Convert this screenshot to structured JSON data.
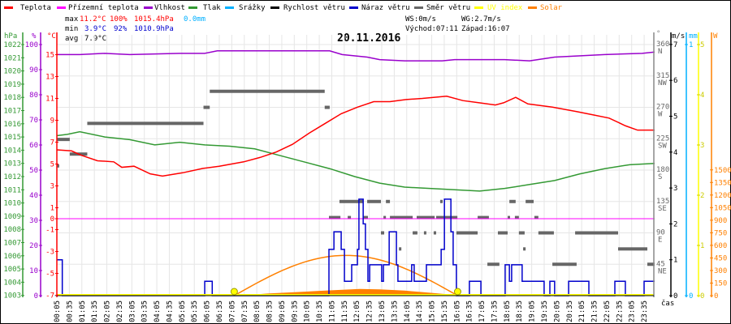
{
  "legend": [
    {
      "label": "Teplota",
      "color": "#ff0000"
    },
    {
      "label": "Přízemní teplota",
      "color": "#ff00ff"
    },
    {
      "label": "Vlhkost",
      "color": "#9900cc"
    },
    {
      "label": "Tlak",
      "color": "#339933"
    },
    {
      "label": "Srážky",
      "color": "#00b0ff"
    },
    {
      "label": "Rychlost větru",
      "color": "#000000"
    },
    {
      "label": "Náraz větru",
      "color": "#0000cc"
    },
    {
      "label": "Směr větru",
      "color": "#666666"
    },
    {
      "label": "UV index",
      "color": "#ffff00"
    },
    {
      "label": "Solar",
      "color": "#ff8000"
    }
  ],
  "stats": {
    "max_label": "max",
    "max_temp": "11.2°C",
    "max_hum": "100%",
    "max_press": "1015.4hPa",
    "max_rain": "0.0mm",
    "min_label": "min",
    "min_temp": "3.9°C",
    "min_hum": "92%",
    "min_press": "1010.9hPa",
    "avg_label": "avg",
    "avg_temp": "7.9°C",
    "ws": "WS:0m/s",
    "wg": "WG:2.7m/s",
    "sunrise": "Východ:07:11",
    "sunset": "Západ:16:07"
  },
  "chart_data": {
    "type": "line",
    "title": "20.11.2016",
    "xlabel": "čas",
    "x_range_hours": [
      0,
      24
    ],
    "x_ticks": [
      "00:05",
      "00:35",
      "01:05",
      "01:35",
      "02:05",
      "02:35",
      "03:05",
      "03:35",
      "04:05",
      "04:35",
      "05:05",
      "05:35",
      "06:05",
      "06:35",
      "07:05",
      "07:35",
      "08:05",
      "08:35",
      "09:05",
      "09:35",
      "10:05",
      "10:35",
      "11:05",
      "11:35",
      "12:05",
      "12:35",
      "13:05",
      "13:35",
      "14:05",
      "14:35",
      "15:05",
      "15:35",
      "16:05",
      "16:35",
      "17:05",
      "17:35",
      "18:05",
      "18:35",
      "19:05",
      "19:35",
      "20:05",
      "20:35",
      "21:05",
      "21:35",
      "22:05",
      "22:35",
      "23:05",
      "23:35"
    ],
    "axes": {
      "hPa": {
        "unit": "hPa",
        "range": [
          1003,
          1022
        ],
        "ticks": [
          "1022",
          "1021",
          "1020",
          "1019",
          "1018",
          "1017",
          "1016",
          "1015",
          "1014",
          "1013",
          "1012",
          "1011",
          "1010",
          "1009",
          "1008",
          "1007",
          "1006",
          "1005",
          "1004",
          "1003"
        ]
      },
      "pct": {
        "unit": "%",
        "range": [
          0,
          100
        ],
        "ticks": [
          "100",
          "90",
          "80",
          "70",
          "60",
          "50",
          "40",
          "30",
          "20",
          "10",
          "0"
        ]
      },
      "degC": {
        "unit": "°C",
        "range": [
          -7,
          15.7
        ],
        "ticks": [
          "15",
          "13",
          "11",
          "9",
          "7",
          "5",
          "3",
          "1",
          "0",
          "-1",
          "-3",
          "-5",
          "-7"
        ]
      },
      "dir": {
        "unit": "°",
        "range": [
          0,
          360
        ],
        "ticks": [
          {
            "v": "360",
            "d": "N"
          },
          {
            "v": "315",
            "d": "NW"
          },
          {
            "v": "270",
            "d": "W"
          },
          {
            "v": "225",
            "d": "SW"
          },
          {
            "v": "180",
            "d": "S"
          },
          {
            "v": "135",
            "d": "SE"
          },
          {
            "v": "90",
            "d": "E"
          },
          {
            "v": "45",
            "d": "NE"
          }
        ]
      },
      "ms": {
        "unit": "m/s",
        "range": [
          0,
          7
        ],
        "ticks": [
          "7",
          "6",
          "5",
          "4",
          "3",
          "2",
          "1",
          "0"
        ]
      },
      "mm": {
        "unit": "mm",
        "range": [
          0,
          1
        ],
        "ticks": [
          "1",
          "0"
        ]
      },
      "uv": {
        "range": [
          0,
          5
        ],
        "ticks": [
          "5",
          "4",
          "3",
          "2",
          "1",
          "0"
        ]
      },
      "W": {
        "unit": "W",
        "range": [
          0,
          3000
        ],
        "ticks": [
          "1500",
          "1350",
          "1200",
          "1050",
          "900",
          "750",
          "600",
          "450",
          "300",
          "150",
          "0"
        ]
      }
    },
    "series": [
      {
        "name": "Teplota",
        "axis": "degC",
        "color": "#ff0000",
        "points": [
          [
            0.08,
            6.3
          ],
          [
            0.67,
            6.2
          ],
          [
            1.06,
            5.8
          ],
          [
            1.71,
            5.3
          ],
          [
            2.36,
            5.2
          ],
          [
            2.68,
            4.7
          ],
          [
            3.17,
            4.8
          ],
          [
            3.82,
            4.1
          ],
          [
            4.31,
            3.9
          ],
          [
            5.12,
            4.2
          ],
          [
            5.93,
            4.6
          ],
          [
            6.58,
            4.8
          ],
          [
            7.56,
            5.2
          ],
          [
            8.21,
            5.6
          ],
          [
            8.86,
            6.1
          ],
          [
            9.51,
            6.8
          ],
          [
            10.16,
            7.8
          ],
          [
            10.81,
            8.7
          ],
          [
            11.46,
            9.6
          ],
          [
            12.11,
            10.2
          ],
          [
            12.76,
            10.7
          ],
          [
            13.41,
            10.7
          ],
          [
            14.06,
            10.9
          ],
          [
            14.71,
            11.0
          ],
          [
            15.68,
            11.2
          ],
          [
            16.33,
            10.8
          ],
          [
            16.98,
            10.6
          ],
          [
            17.63,
            10.4
          ],
          [
            17.96,
            10.6
          ],
          [
            18.44,
            11.1
          ],
          [
            18.93,
            10.5
          ],
          [
            19.91,
            10.2
          ],
          [
            20.88,
            9.8
          ],
          [
            21.53,
            9.5
          ],
          [
            22.18,
            9.2
          ],
          [
            22.83,
            8.5
          ],
          [
            23.32,
            8.1
          ],
          [
            24,
            8.1
          ]
        ]
      },
      {
        "name": "Přízemní teplota",
        "axis": "degC",
        "color": "#ff00ff",
        "points": [
          [
            0,
            0
          ],
          [
            24,
            0
          ]
        ]
      },
      {
        "name": "Vlhkost",
        "axis": "pct",
        "color": "#9900cc",
        "points": [
          [
            0.08,
            96
          ],
          [
            1,
            96
          ],
          [
            2,
            96.5
          ],
          [
            3,
            96
          ],
          [
            5,
            96.5
          ],
          [
            6,
            96.5
          ],
          [
            6.5,
            97.5
          ],
          [
            11,
            97.5
          ],
          [
            11.5,
            96
          ],
          [
            12.5,
            95
          ],
          [
            13,
            94
          ],
          [
            14,
            93.5
          ],
          [
            15.5,
            93.5
          ],
          [
            16,
            94
          ],
          [
            18,
            94
          ],
          [
            19,
            93.5
          ],
          [
            20,
            95
          ],
          [
            22,
            96
          ],
          [
            23.5,
            96.5
          ],
          [
            24,
            97
          ]
        ]
      },
      {
        "name": "Tlak",
        "axis": "hPa",
        "color": "#339933",
        "points": [
          [
            0.08,
            1015.1
          ],
          [
            0.5,
            1015.2
          ],
          [
            1,
            1015.4
          ],
          [
            2,
            1015.0
          ],
          [
            3,
            1014.8
          ],
          [
            4,
            1014.4
          ],
          [
            5,
            1014.6
          ],
          [
            6,
            1014.4
          ],
          [
            7,
            1014.3
          ],
          [
            8,
            1014.1
          ],
          [
            9,
            1013.6
          ],
          [
            10,
            1013.1
          ],
          [
            11,
            1012.6
          ],
          [
            12,
            1012.0
          ],
          [
            13,
            1011.5
          ],
          [
            14,
            1011.2
          ],
          [
            15,
            1011.1
          ],
          [
            16,
            1011.0
          ],
          [
            17,
            1010.9
          ],
          [
            18,
            1011.1
          ],
          [
            19,
            1011.4
          ],
          [
            20,
            1011.7
          ],
          [
            21,
            1012.2
          ],
          [
            22,
            1012.6
          ],
          [
            23,
            1012.9
          ],
          [
            24,
            1013.0
          ]
        ]
      },
      {
        "name": "Srážky",
        "axis": "mm",
        "color": "#00b0ff",
        "points": [
          [
            0,
            0
          ],
          [
            24,
            0
          ]
        ]
      },
      {
        "name": "Náraz větru",
        "axis": "ms",
        "color": "#0000cc",
        "step": true,
        "points": [
          [
            0.08,
            1.0
          ],
          [
            0.3,
            0
          ],
          [
            6.0,
            0.4
          ],
          [
            6.3,
            0
          ],
          [
            10.74,
            0
          ],
          [
            10.97,
            1.29
          ],
          [
            11.17,
            1.78
          ],
          [
            11.46,
            1.29
          ],
          [
            11.59,
            0.4
          ],
          [
            11.88,
            0.86
          ],
          [
            12.11,
            1.29
          ],
          [
            12.17,
            2.69
          ],
          [
            12.34,
            2.0
          ],
          [
            12.43,
            1.29
          ],
          [
            12.53,
            0.4
          ],
          [
            12.6,
            0.86
          ],
          [
            13.08,
            0.4
          ],
          [
            13.15,
            0.86
          ],
          [
            13.38,
            1.78
          ],
          [
            13.67,
            0.86
          ],
          [
            13.73,
            0.4
          ],
          [
            14.28,
            0.86
          ],
          [
            14.38,
            0.4
          ],
          [
            14.87,
            0.86
          ],
          [
            15.46,
            1.29
          ],
          [
            15.59,
            2.69
          ],
          [
            15.85,
            1.78
          ],
          [
            15.94,
            0.86
          ],
          [
            16.07,
            0
          ],
          [
            16.59,
            0.4
          ],
          [
            17.05,
            0
          ],
          [
            18.02,
            0.86
          ],
          [
            18.19,
            0.4
          ],
          [
            18.28,
            0.86
          ],
          [
            18.7,
            0.4
          ],
          [
            19.58,
            0
          ],
          [
            19.81,
            0.4
          ],
          [
            20.0,
            0
          ],
          [
            20.56,
            0.4
          ],
          [
            21.37,
            0
          ],
          [
            22.41,
            0.4
          ],
          [
            22.83,
            0
          ],
          [
            23.58,
            0.4
          ],
          [
            24,
            0.4
          ]
        ]
      },
      {
        "name": "Solar",
        "axis": "W",
        "color": "#ff8000",
        "points": [
          [
            7.4,
            0
          ],
          [
            7.8,
            10
          ],
          [
            8.5,
            25
          ],
          [
            9.5,
            40
          ],
          [
            10.5,
            55
          ],
          [
            11.5,
            70
          ],
          [
            12.2,
            80
          ],
          [
            13,
            75
          ],
          [
            14,
            60
          ],
          [
            15,
            35
          ],
          [
            15.8,
            15
          ],
          [
            16.1,
            0
          ]
        ]
      },
      {
        "name": "Solar max",
        "axis": "W",
        "color": "#ff8000",
        "sine": {
          "start": 7.18,
          "end": 16.12,
          "peak": 480
        }
      },
      {
        "name": "UV index",
        "axis": "uv",
        "color": "#ffff00",
        "markers": [
          [
            7.18,
            0
          ],
          [
            16.12,
            0
          ]
        ]
      }
    ],
    "wind_direction_segments": [
      [
        0.08,
        0.6,
        224
      ],
      [
        0.6,
        1.3,
        203
      ],
      [
        0.08,
        0.15,
        186
      ],
      [
        1.3,
        5.95,
        247
      ],
      [
        5.95,
        6.2,
        270
      ],
      [
        6.2,
        10.8,
        293
      ],
      [
        10.8,
        11.0,
        270
      ],
      [
        11.39,
        12.34,
        135
      ],
      [
        12.5,
        13.05,
        135
      ],
      [
        13.25,
        13.41,
        135
      ],
      [
        15.42,
        15.52,
        135
      ],
      [
        18.19,
        18.44,
        135
      ],
      [
        18.84,
        19.16,
        135
      ],
      [
        10.97,
        11.43,
        112
      ],
      [
        11.72,
        11.85,
        112
      ],
      [
        12.34,
        12.53,
        112
      ],
      [
        13.15,
        13.25,
        112
      ],
      [
        13.41,
        14.32,
        112
      ],
      [
        14.48,
        15.2,
        112
      ],
      [
        15.26,
        16.11,
        112
      ],
      [
        16.92,
        17.37,
        112
      ],
      [
        18.12,
        18.19,
        112
      ],
      [
        18.41,
        18.57,
        112
      ],
      [
        19.19,
        19.35,
        112
      ],
      [
        13.05,
        13.18,
        90
      ],
      [
        14.32,
        14.51,
        90
      ],
      [
        14.77,
        14.84,
        90
      ],
      [
        15.16,
        15.26,
        90
      ],
      [
        16.07,
        16.92,
        90
      ],
      [
        17.73,
        18.12,
        90
      ],
      [
        18.57,
        18.8,
        90
      ],
      [
        19.35,
        19.97,
        90
      ],
      [
        20.82,
        22.54,
        90
      ],
      [
        13.77,
        13.83,
        67
      ],
      [
        18.74,
        18.84,
        67
      ],
      [
        22.54,
        23.71,
        67
      ],
      [
        17.31,
        17.79,
        45
      ],
      [
        19.91,
        20.88,
        45
      ],
      [
        23.71,
        24,
        45
      ]
    ]
  }
}
